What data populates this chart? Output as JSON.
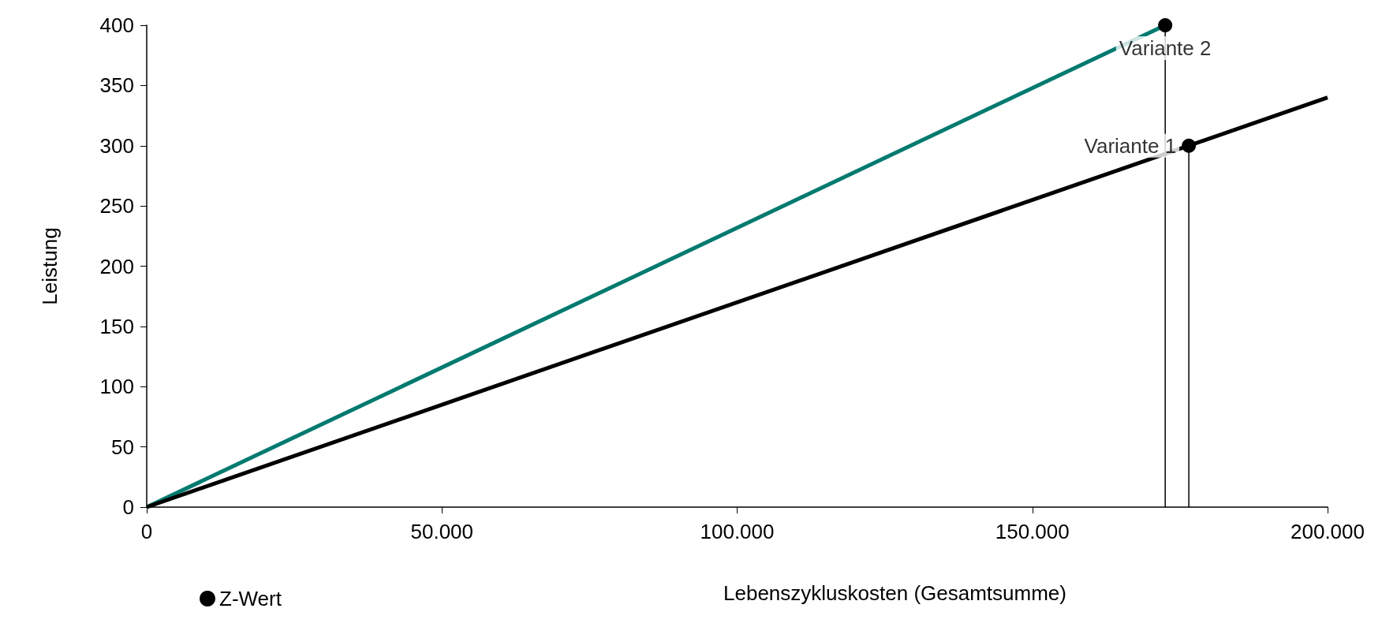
{
  "chart_data": {
    "type": "line",
    "xlabel": "Lebenszykluskosten (Gesamtsumme)",
    "ylabel": "Leistung",
    "xlim": [
      0,
      200000
    ],
    "xticks": [
      0,
      {
        "value": 50000,
        "label": "50.000"
      },
      {
        "value": 100000,
        "label": "100.000"
      },
      {
        "value": 150000,
        "label": "150.000"
      },
      {
        "value": 200000,
        "label": "200.000"
      }
    ],
    "ylim": [
      0,
      400
    ],
    "yticks": [
      0,
      50,
      100,
      150,
      200,
      250,
      300,
      350,
      400
    ],
    "grid": false,
    "legend": "bottom left",
    "marker": "none",
    "line_style": "solid",
    "series": [
      {
        "color": "#007a70",
        "x": [
          0,
          172500
        ],
        "values": [
          0,
          400
        ]
      },
      {
        "color": "#000000",
        "x": [
          0,
          200000
        ],
        "values": [
          0,
          340
        ]
      },
      {
        "color": "#000000",
        "x": [
          172500,
          172500
        ],
        "values": [
          0,
          400
        ]
      },
      {
        "color": "#000000",
        "x": [
          176500,
          176500
        ],
        "values": [
          0,
          300
        ]
      },
      {
        "type": "scatter",
        "name": "Z-Wert",
        "color": "#000000",
        "marker": "circle",
        "x": [
          172500,
          176500
        ],
        "values": [
          400,
          300
        ]
      }
    ],
    "annotations": [
      {
        "text": "Variante 2",
        "x": 172500,
        "y": 400
      },
      {
        "text": "Variante 1",
        "x": 176500,
        "y": 300
      }
    ]
  }
}
